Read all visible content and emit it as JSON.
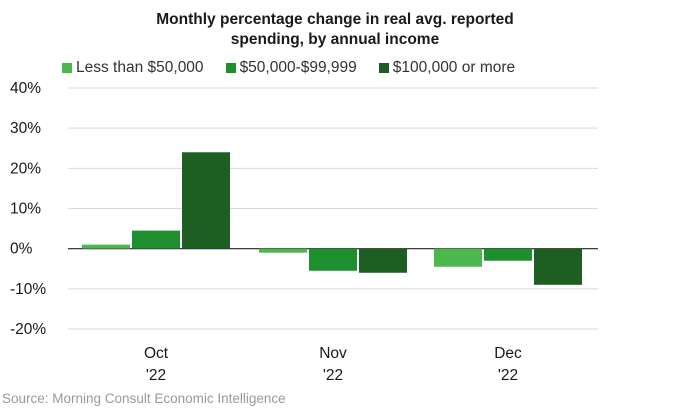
{
  "chart_data": {
    "type": "bar",
    "title_line1": "Monthly percentage change in real avg. reported",
    "title_line2": "spending, by annual income",
    "categories": [
      [
        "Oct",
        "'22"
      ],
      [
        "Nov",
        "'22"
      ],
      [
        "Dec",
        "'22"
      ]
    ],
    "series": [
      {
        "name": "Less than $50,000",
        "color": "#4cb74c",
        "values": [
          1,
          -1,
          -4.5
        ]
      },
      {
        "name": "$50,000-$99,999",
        "color": "#1e8f2e",
        "values": [
          4.5,
          -5.5,
          -3
        ]
      },
      {
        "name": "$100,000 or more",
        "color": "#1d5e23",
        "values": [
          24,
          -6,
          -9
        ]
      }
    ],
    "ylim": [
      -20,
      40
    ],
    "yticks": [
      40,
      30,
      20,
      10,
      0,
      -10,
      -20
    ],
    "ytick_labels": [
      "40%",
      "30%",
      "20%",
      "10%",
      "0%",
      "-10%",
      "-20%"
    ],
    "grid": true,
    "legend_position": "top",
    "source": "Source: Morning Consult Economic Intelligence"
  }
}
